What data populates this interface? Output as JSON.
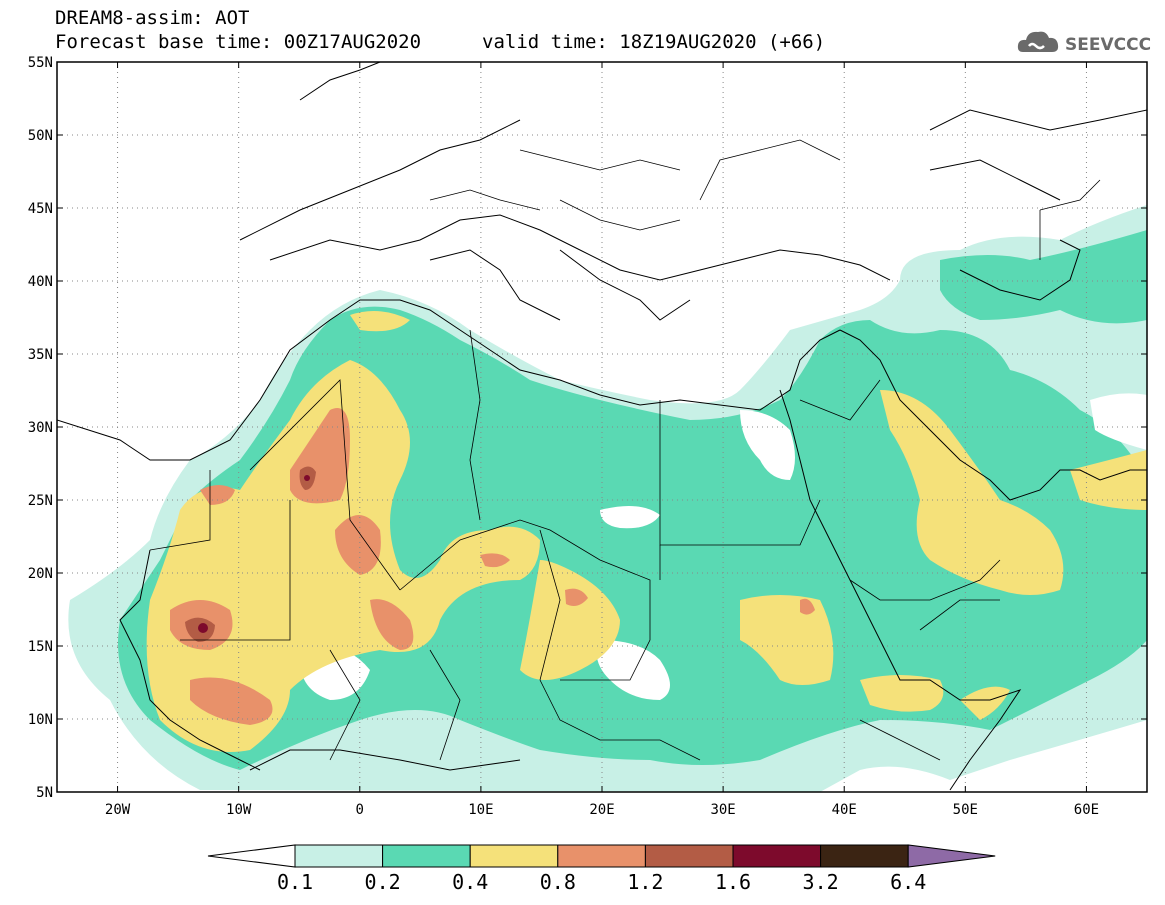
{
  "header": {
    "model_line": "DREAM8-assim: AOT",
    "base_time": "Forecast base time: 00Z17AUG2020",
    "valid_time": "valid time: 18Z19AUG2020 (+66)"
  },
  "logo": {
    "text": "SEEVCCC",
    "icon": "cloud-icon"
  },
  "map": {
    "lon_range": [
      -25,
      65
    ],
    "lat_range": [
      5,
      55
    ],
    "lat_ticks": [
      "5N",
      "10N",
      "15N",
      "20N",
      "25N",
      "30N",
      "35N",
      "40N",
      "45N",
      "50N",
      "55N"
    ],
    "lon_ticks": [
      "20W",
      "10W",
      "0",
      "10E",
      "20E",
      "30E",
      "40E",
      "50E",
      "60E"
    ],
    "gridlines": true
  },
  "colorbar": {
    "levels": [
      "0.1",
      "0.2",
      "0.4",
      "0.8",
      "1.2",
      "1.6",
      "3.2",
      "6.4"
    ],
    "colors": [
      "#ffffff",
      "#c8f0e6",
      "#5ad9b3",
      "#f5e17a",
      "#e8916a",
      "#b35c45",
      "#7d0a2c",
      "#3b2413",
      "#8e6aa6"
    ]
  }
}
